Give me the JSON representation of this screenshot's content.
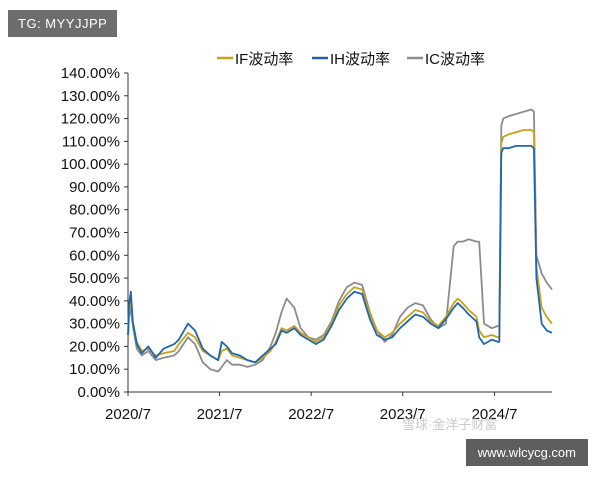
{
  "watermark_top": "TG: MYYJJPP",
  "watermark_bottom_left": "雪球·金洋子财富",
  "watermark_bottom_right": "www.wlcycg.com",
  "chart_data": {
    "type": "line",
    "title": "",
    "xlabel": "",
    "ylabel": "",
    "ylim": [
      0,
      140
    ],
    "y_ticks": [
      "0.00%",
      "10.00%",
      "20.00%",
      "30.00%",
      "40.00%",
      "50.00%",
      "60.00%",
      "70.00%",
      "80.00%",
      "90.00%",
      "100.00%",
      "110.00%",
      "120.00%",
      "130.00%",
      "140.00%"
    ],
    "x_ticks": [
      "2020/7",
      "2021/7",
      "2022/7",
      "2023/7",
      "2024/7"
    ],
    "x_range": [
      "2020-07-01",
      "2025-02-15"
    ],
    "grid": false,
    "legend_position": "top",
    "series": [
      {
        "name": "IF波动率",
        "color": "#c8a21c",
        "points": [
          [
            "2020-07-01",
            24
          ],
          [
            "2020-07-05",
            36
          ],
          [
            "2020-07-12",
            42
          ],
          [
            "2020-07-20",
            30
          ],
          [
            "2020-08-05",
            22
          ],
          [
            "2020-08-25",
            18
          ],
          [
            "2020-09-20",
            19
          ],
          [
            "2020-10-20",
            16
          ],
          [
            "2020-11-20",
            17
          ],
          [
            "2021-01-01",
            18
          ],
          [
            "2021-01-20",
            21
          ],
          [
            "2021-02-25",
            26
          ],
          [
            "2021-03-25",
            24
          ],
          [
            "2021-04-25",
            18
          ],
          [
            "2021-05-25",
            16
          ],
          [
            "2021-06-25",
            14
          ],
          [
            "2021-07-10",
            18
          ],
          [
            "2021-07-30",
            19
          ],
          [
            "2021-08-20",
            16
          ],
          [
            "2021-09-20",
            15
          ],
          [
            "2021-10-20",
            14
          ],
          [
            "2021-11-20",
            13
          ],
          [
            "2021-12-20",
            15
          ],
          [
            "2022-01-20",
            18
          ],
          [
            "2022-02-10",
            22
          ],
          [
            "2022-03-05",
            28
          ],
          [
            "2022-03-25",
            27
          ],
          [
            "2022-04-25",
            29
          ],
          [
            "2022-05-20",
            26
          ],
          [
            "2022-06-20",
            24
          ],
          [
            "2022-07-20",
            22
          ],
          [
            "2022-08-20",
            24
          ],
          [
            "2022-09-20",
            30
          ],
          [
            "2022-10-20",
            38
          ],
          [
            "2022-11-20",
            43
          ],
          [
            "2022-12-20",
            46
          ],
          [
            "2023-01-20",
            45
          ],
          [
            "2023-02-20",
            34
          ],
          [
            "2023-03-20",
            27
          ],
          [
            "2023-04-20",
            24
          ],
          [
            "2023-05-20",
            26
          ],
          [
            "2023-06-20",
            30
          ],
          [
            "2023-07-20",
            33
          ],
          [
            "2023-08-20",
            36
          ],
          [
            "2023-09-20",
            35
          ],
          [
            "2023-10-20",
            31
          ],
          [
            "2023-11-20",
            29
          ],
          [
            "2023-12-20",
            33
          ],
          [
            "2024-01-20",
            39
          ],
          [
            "2024-02-05",
            41
          ],
          [
            "2024-02-25",
            39
          ],
          [
            "2024-03-20",
            36
          ],
          [
            "2024-04-20",
            33
          ],
          [
            "2024-05-01",
            27
          ],
          [
            "2024-05-20",
            24
          ],
          [
            "2024-06-20",
            25
          ],
          [
            "2024-07-15",
            24
          ],
          [
            "2024-07-20",
            24
          ],
          [
            "2024-07-28",
            109
          ],
          [
            "2024-08-05",
            112
          ],
          [
            "2024-08-25",
            113
          ],
          [
            "2024-09-25",
            114
          ],
          [
            "2024-10-25",
            115
          ],
          [
            "2024-11-25",
            115
          ],
          [
            "2024-12-05",
            114
          ],
          [
            "2024-12-15",
            55
          ],
          [
            "2025-01-05",
            37
          ],
          [
            "2025-01-25",
            33
          ],
          [
            "2025-02-15",
            30
          ]
        ]
      },
      {
        "name": "IH波动率",
        "color": "#1f66b0",
        "points": [
          [
            "2020-07-01",
            25
          ],
          [
            "2020-07-05",
            38
          ],
          [
            "2020-07-12",
            44
          ],
          [
            "2020-07-20",
            31
          ],
          [
            "2020-08-05",
            21
          ],
          [
            "2020-08-25",
            17
          ],
          [
            "2020-09-20",
            20
          ],
          [
            "2020-10-20",
            15
          ],
          [
            "2020-11-20",
            19
          ],
          [
            "2021-01-01",
            21
          ],
          [
            "2021-01-20",
            23
          ],
          [
            "2021-02-25",
            30
          ],
          [
            "2021-03-25",
            27
          ],
          [
            "2021-04-25",
            19
          ],
          [
            "2021-05-25",
            16
          ],
          [
            "2021-06-25",
            14
          ],
          [
            "2021-07-10",
            22
          ],
          [
            "2021-07-30",
            20
          ],
          [
            "2021-08-20",
            17
          ],
          [
            "2021-09-20",
            16
          ],
          [
            "2021-10-20",
            14
          ],
          [
            "2021-11-20",
            13
          ],
          [
            "2021-12-20",
            16
          ],
          [
            "2022-01-20",
            19
          ],
          [
            "2022-02-10",
            21
          ],
          [
            "2022-03-05",
            27
          ],
          [
            "2022-03-25",
            26
          ],
          [
            "2022-04-25",
            28
          ],
          [
            "2022-05-20",
            25
          ],
          [
            "2022-06-20",
            23
          ],
          [
            "2022-07-20",
            21
          ],
          [
            "2022-08-20",
            23
          ],
          [
            "2022-09-20",
            29
          ],
          [
            "2022-10-20",
            36
          ],
          [
            "2022-11-20",
            41
          ],
          [
            "2022-12-20",
            44
          ],
          [
            "2023-01-20",
            43
          ],
          [
            "2023-02-20",
            32
          ],
          [
            "2023-03-20",
            25
          ],
          [
            "2023-04-20",
            23
          ],
          [
            "2023-05-20",
            24
          ],
          [
            "2023-06-20",
            28
          ],
          [
            "2023-07-20",
            31
          ],
          [
            "2023-08-20",
            34
          ],
          [
            "2023-09-20",
            33
          ],
          [
            "2023-10-20",
            30
          ],
          [
            "2023-11-20",
            28
          ],
          [
            "2023-12-20",
            32
          ],
          [
            "2024-01-20",
            37
          ],
          [
            "2024-02-05",
            39
          ],
          [
            "2024-02-25",
            37
          ],
          [
            "2024-03-20",
            34
          ],
          [
            "2024-04-20",
            31
          ],
          [
            "2024-05-01",
            24
          ],
          [
            "2024-05-20",
            21
          ],
          [
            "2024-06-20",
            23
          ],
          [
            "2024-07-15",
            22
          ],
          [
            "2024-07-20",
            22
          ],
          [
            "2024-07-28",
            105
          ],
          [
            "2024-08-05",
            107
          ],
          [
            "2024-08-25",
            107
          ],
          [
            "2024-09-25",
            108
          ],
          [
            "2024-10-25",
            108
          ],
          [
            "2024-11-25",
            108
          ],
          [
            "2024-12-05",
            107
          ],
          [
            "2024-12-15",
            50
          ],
          [
            "2025-01-05",
            30
          ],
          [
            "2025-01-25",
            27
          ],
          [
            "2025-02-15",
            26
          ]
        ]
      },
      {
        "name": "IC波动率",
        "color": "#8c8c8c",
        "points": [
          [
            "2020-07-01",
            22
          ],
          [
            "2020-07-05",
            33
          ],
          [
            "2020-07-12",
            37
          ],
          [
            "2020-07-20",
            29
          ],
          [
            "2020-08-05",
            19
          ],
          [
            "2020-08-25",
            16
          ],
          [
            "2020-09-20",
            18
          ],
          [
            "2020-10-20",
            14
          ],
          [
            "2020-11-20",
            15
          ],
          [
            "2021-01-01",
            16
          ],
          [
            "2021-01-20",
            18
          ],
          [
            "2021-02-25",
            24
          ],
          [
            "2021-03-25",
            21
          ],
          [
            "2021-04-25",
            13
          ],
          [
            "2021-05-25",
            10
          ],
          [
            "2021-06-25",
            9
          ],
          [
            "2021-07-10",
            11
          ],
          [
            "2021-07-30",
            14
          ],
          [
            "2021-08-20",
            12
          ],
          [
            "2021-09-20",
            12
          ],
          [
            "2021-10-20",
            11
          ],
          [
            "2021-11-20",
            12
          ],
          [
            "2021-12-20",
            14
          ],
          [
            "2022-01-20",
            20
          ],
          [
            "2022-02-10",
            26
          ],
          [
            "2022-03-05",
            35
          ],
          [
            "2022-03-25",
            41
          ],
          [
            "2022-04-25",
            37
          ],
          [
            "2022-05-20",
            28
          ],
          [
            "2022-06-20",
            24
          ],
          [
            "2022-07-20",
            23
          ],
          [
            "2022-08-20",
            25
          ],
          [
            "2022-09-20",
            31
          ],
          [
            "2022-10-20",
            40
          ],
          [
            "2022-11-20",
            46
          ],
          [
            "2022-12-20",
            48
          ],
          [
            "2023-01-20",
            47
          ],
          [
            "2023-02-20",
            35
          ],
          [
            "2023-03-20",
            27
          ],
          [
            "2023-04-20",
            22
          ],
          [
            "2023-05-20",
            25
          ],
          [
            "2023-06-20",
            33
          ],
          [
            "2023-07-20",
            37
          ],
          [
            "2023-08-20",
            39
          ],
          [
            "2023-09-20",
            38
          ],
          [
            "2023-10-20",
            32
          ],
          [
            "2023-11-20",
            28
          ],
          [
            "2023-12-20",
            30
          ],
          [
            "2024-01-20",
            64
          ],
          [
            "2024-02-05",
            66
          ],
          [
            "2024-02-25",
            66
          ],
          [
            "2024-03-20",
            67
          ],
          [
            "2024-04-20",
            66
          ],
          [
            "2024-05-01",
            66
          ],
          [
            "2024-05-20",
            30
          ],
          [
            "2024-06-20",
            28
          ],
          [
            "2024-07-15",
            29
          ],
          [
            "2024-07-20",
            29
          ],
          [
            "2024-07-28",
            117
          ],
          [
            "2024-08-05",
            120
          ],
          [
            "2024-08-25",
            121
          ],
          [
            "2024-09-25",
            122
          ],
          [
            "2024-10-25",
            123
          ],
          [
            "2024-11-25",
            124
          ],
          [
            "2024-12-05",
            123
          ],
          [
            "2024-12-15",
            60
          ],
          [
            "2025-01-05",
            52
          ],
          [
            "2025-01-25",
            48
          ],
          [
            "2025-02-15",
            45
          ]
        ]
      }
    ]
  }
}
